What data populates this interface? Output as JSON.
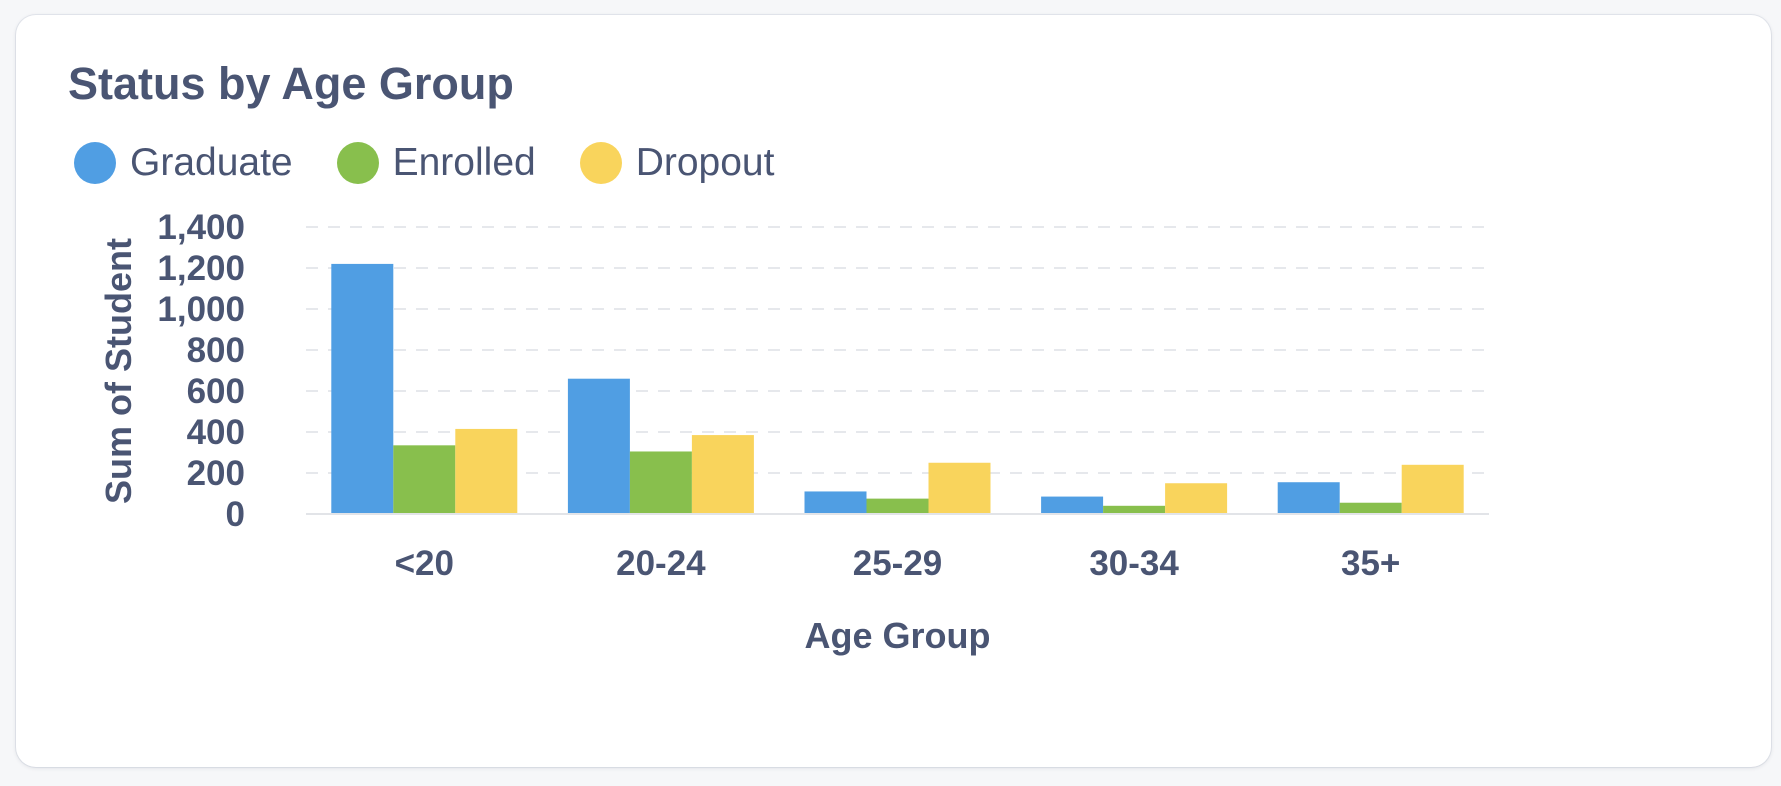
{
  "card": {
    "title": "Status by Age Group"
  },
  "legend": [
    {
      "label": "Graduate",
      "color": "#509ee3"
    },
    {
      "label": "Enrolled",
      "color": "#88bf4d"
    },
    {
      "label": "Dropout",
      "color": "#f9d45c"
    }
  ],
  "chart_data": {
    "type": "bar",
    "title": "Status by Age Group",
    "xlabel": "Age Group",
    "ylabel": "Sum of Student",
    "categories": [
      "<20",
      "20-24",
      "25-29",
      "30-34",
      "35+"
    ],
    "series": [
      {
        "name": "Graduate",
        "color": "#509ee3",
        "values": [
          1220,
          660,
          110,
          85,
          155
        ]
      },
      {
        "name": "Enrolled",
        "color": "#88bf4d",
        "values": [
          335,
          305,
          75,
          40,
          55
        ]
      },
      {
        "name": "Dropout",
        "color": "#f9d45c",
        "values": [
          415,
          385,
          250,
          150,
          240
        ]
      }
    ],
    "ylim": [
      0,
      1400
    ],
    "yticks": [
      0,
      200,
      400,
      600,
      800,
      1000,
      1200,
      1400
    ],
    "ytick_labels": [
      "0",
      "200",
      "400",
      "600",
      "800",
      "1,000",
      "1,200",
      "1,400"
    ],
    "grid": true,
    "legend_position": "top-left"
  }
}
